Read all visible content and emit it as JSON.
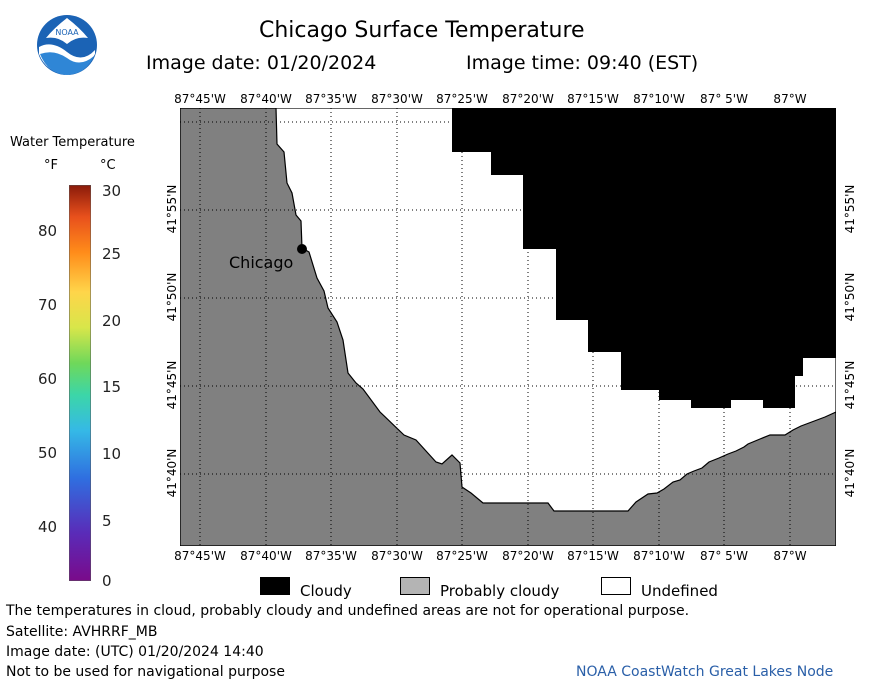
{
  "header": {
    "title": "Chicago Surface Temperature",
    "image_date": "Image date: 01/20/2024",
    "image_time": "Image time: 09:40 (EST)"
  },
  "logo": {
    "text": "NOAA",
    "icon": "noaa-logo-icon"
  },
  "map": {
    "top_longitudes": [
      "87°45'W",
      "87°40'W",
      "87°35'W",
      "87°30'W",
      "87°25'W",
      "87°20'W",
      "87°15'W",
      "87°10'W",
      "87° 5'W",
      "87°W"
    ],
    "bottom_longitudes": [
      "87°45'W",
      "87°40'W",
      "87°35'W",
      "87°30'W",
      "87°25'W",
      "87°20'W",
      "87°15'W",
      "87°10'W",
      "87° 5'W",
      "87°W"
    ],
    "left_latitudes": [
      "41°55'N",
      "41°50'N",
      "41°45'N",
      "41°40'N"
    ],
    "right_latitudes": [
      "41°55'N",
      "41°50'N",
      "41°45'N",
      "41°40'N"
    ],
    "city_label": "Chicago",
    "colors": {
      "land": "#808080",
      "cloudy": "#000000",
      "undefined": "#ffffff",
      "grid": "#000000"
    }
  },
  "legend": {
    "title": "Water Temperature",
    "unit_f": "°F",
    "unit_c": "°C",
    "ticks_f": [
      "80",
      "70",
      "60",
      "50",
      "40"
    ],
    "ticks_c": [
      "30",
      "25",
      "20",
      "15",
      "10",
      "5",
      "0"
    ]
  },
  "key": {
    "cloudy": "Cloudy",
    "probably_cloudy": "Probably cloudy",
    "undefined": "Undefined",
    "colors": {
      "cloudy": "#000000",
      "probably_cloudy": "#b4b4b4",
      "undefined": "#ffffff"
    }
  },
  "footer": {
    "line1": "The temperatures in cloud, probably cloudy and undefined areas are not for operational purpose.",
    "line2": "Satellite: AVHRRF_MB",
    "line3": "Image date: (UTC) 01/20/2024  14:40",
    "line4": "Not to be used for navigational purpose",
    "credit": "NOAA CoastWatch Great Lakes Node"
  }
}
